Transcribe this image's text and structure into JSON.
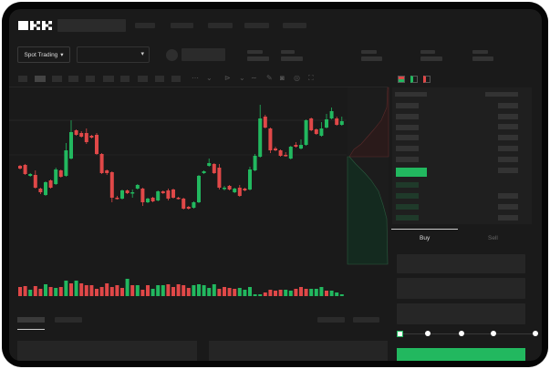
{
  "brand": {
    "logo_text": "OKX"
  },
  "header": {
    "market_selector_label": "Spot Trading",
    "dropdown_chevron": "▾"
  },
  "trade_panel": {
    "tabs": [
      {
        "label": "Buy",
        "active": true
      },
      {
        "label": "Sell",
        "active": false
      }
    ],
    "slider_position_percent": 0,
    "slider_marks": [
      0,
      25,
      50,
      75,
      100
    ]
  },
  "colors": {
    "up": "#22b85f",
    "down": "#e04848",
    "background": "#1a1a1a",
    "accent": "#22b85f"
  },
  "icons": [
    "chevron-down-icon",
    "candle-interval-icon",
    "indicator-icon",
    "pen-icon",
    "camera-icon",
    "settings-icon",
    "fullscreen-icon",
    "orderbook-both-icon",
    "orderbook-bids-icon",
    "orderbook-asks-icon"
  ],
  "chart_data": {
    "type": "candlestick",
    "ylim": [
      10,
      204
    ],
    "candles_ohlc": [
      [
        118,
        119,
        114,
        115
      ],
      [
        119,
        120,
        108,
        109
      ],
      [
        107,
        110,
        106,
        109
      ],
      [
        108,
        113,
        93,
        94
      ],
      [
        93,
        94,
        87,
        89
      ],
      [
        86,
        101,
        85,
        100
      ],
      [
        102,
        103,
        93,
        94
      ],
      [
        98,
        116,
        97,
        114
      ],
      [
        113,
        114,
        105,
        106
      ],
      [
        107,
        143,
        106,
        135
      ],
      [
        126,
        168,
        125,
        155
      ],
      [
        157,
        158,
        151,
        152
      ],
      [
        154,
        156,
        149,
        150
      ],
      [
        154,
        159,
        142,
        144
      ],
      [
        151,
        152,
        148,
        149
      ],
      [
        152,
        154,
        130,
        131
      ],
      [
        131,
        132,
        109,
        110
      ],
      [
        113,
        114,
        108,
        110
      ],
      [
        111,
        112,
        78,
        83
      ],
      [
        83,
        85,
        81,
        82
      ],
      [
        82,
        92,
        81,
        91
      ],
      [
        91,
        92,
        87,
        88
      ],
      [
        88,
        92,
        83,
        89
      ],
      [
        93,
        98,
        92,
        97
      ],
      [
        93,
        94,
        74,
        78
      ],
      [
        78,
        83,
        77,
        82
      ],
      [
        83,
        84,
        78,
        79
      ],
      [
        80,
        91,
        79,
        90
      ],
      [
        90,
        91,
        87,
        88
      ],
      [
        91,
        93,
        80,
        82
      ],
      [
        92,
        93,
        82,
        83
      ],
      [
        83,
        84,
        81,
        82
      ],
      [
        82,
        83,
        70,
        71
      ],
      [
        73,
        74,
        70,
        71
      ],
      [
        72,
        79,
        71,
        78
      ],
      [
        78,
        108,
        77,
        107
      ],
      [
        110,
        113,
        109,
        112
      ],
      [
        118,
        126,
        117,
        121
      ],
      [
        120,
        121,
        109,
        110
      ],
      [
        116,
        120,
        92,
        94
      ],
      [
        93,
        96,
        91,
        94
      ],
      [
        96,
        97,
        91,
        92
      ],
      [
        89,
        94,
        88,
        93
      ],
      [
        94,
        97,
        84,
        85
      ],
      [
        93,
        94,
        90,
        91
      ],
      [
        92,
        117,
        91,
        114
      ],
      [
        113,
        131,
        112,
        129
      ],
      [
        128,
        185,
        127,
        170
      ],
      [
        172,
        174,
        159,
        160
      ],
      [
        159,
        160,
        132,
        135
      ],
      [
        137,
        139,
        134,
        135
      ],
      [
        135,
        136,
        128,
        129
      ],
      [
        130,
        133,
        128,
        129
      ],
      [
        126,
        140,
        125,
        139
      ],
      [
        141,
        144,
        138,
        139
      ],
      [
        137,
        147,
        136,
        141
      ],
      [
        141,
        169,
        140,
        168
      ],
      [
        170,
        171,
        156,
        157
      ],
      [
        158,
        159,
        152,
        153
      ],
      [
        151,
        166,
        150,
        159
      ],
      [
        160,
        175,
        159,
        169
      ],
      [
        170,
        182,
        169,
        178
      ],
      [
        170,
        172,
        162,
        163
      ],
      [
        163,
        172,
        162,
        167
      ]
    ],
    "volume": [
      10,
      11,
      7,
      11,
      8,
      13,
      10,
      9,
      10,
      17,
      14,
      17,
      14,
      12,
      12,
      8,
      10,
      14,
      10,
      12,
      9,
      19,
      12,
      12,
      7,
      12,
      8,
      12,
      12,
      13,
      10,
      13,
      12,
      9,
      12,
      13,
      12,
      9,
      13,
      8,
      10,
      9,
      8,
      9,
      7,
      10,
      2,
      2,
      4,
      7,
      6,
      7,
      7,
      6,
      8,
      10,
      8,
      8,
      8,
      10,
      6,
      6,
      4,
      2
    ],
    "volume_direction": "rrgrrgrgrgrgrrrrrrrrrgrgrrgggrrrrrgggggrrrrgggggrrrrggrrrgggrggg"
  }
}
